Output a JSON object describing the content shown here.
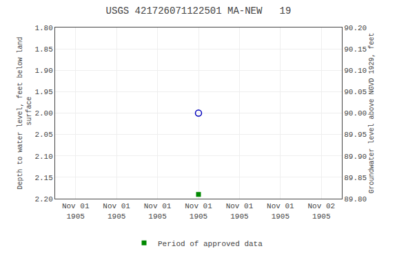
{
  "chart_data": {
    "type": "scatter",
    "title": "USGS 421726071122501 MA-NEW   19",
    "ylabel": "Depth to water level, feet below land\n surface",
    "y2label": "Groundwater level above NGVD 1929, feet",
    "categories": [
      "Nov 01\n1905",
      "Nov 01\n1905",
      "Nov 01\n1905",
      "Nov 01\n1905",
      "Nov 01\n1905",
      "Nov 01\n1905",
      "Nov 02\n1905"
    ],
    "series": [
      {
        "color": "#0000bb",
        "marker": "circle-open",
        "values": [
          null,
          null,
          null,
          2.0,
          null,
          null,
          null
        ]
      },
      {
        "name": "Period of approved data",
        "color": "#008800",
        "marker": "square",
        "values": [
          null,
          null,
          null,
          2.19,
          null,
          null,
          null
        ]
      }
    ],
    "ylim": [
      2.2,
      1.8
    ],
    "yticks": [
      {
        "value": 1.8,
        "label": "1.80"
      },
      {
        "value": 1.85,
        "label": "1.85"
      },
      {
        "value": 1.9,
        "label": "1.90"
      },
      {
        "value": 1.95,
        "label": "1.95"
      },
      {
        "value": 2.0,
        "label": "2.00"
      },
      {
        "value": 2.05,
        "label": "2.05"
      },
      {
        "value": 2.1,
        "label": "2.10"
      },
      {
        "value": 2.15,
        "label": "2.15"
      },
      {
        "value": 2.2,
        "label": "2.20"
      }
    ],
    "y2lim": [
      89.8,
      90.2
    ],
    "y2ticks": [
      {
        "value": 89.8,
        "label": "89.80"
      },
      {
        "value": 89.85,
        "label": "89.85"
      },
      {
        "value": 89.9,
        "label": "89.90"
      },
      {
        "value": 89.95,
        "label": "89.95"
      },
      {
        "value": 90.0,
        "label": "90.00"
      },
      {
        "value": 90.05,
        "label": "90.05"
      },
      {
        "value": 90.1,
        "label": "90.10"
      },
      {
        "value": 90.15,
        "label": "90.15"
      },
      {
        "value": 90.2,
        "label": "90.20"
      }
    ],
    "grid": true,
    "legend": "bottom"
  }
}
